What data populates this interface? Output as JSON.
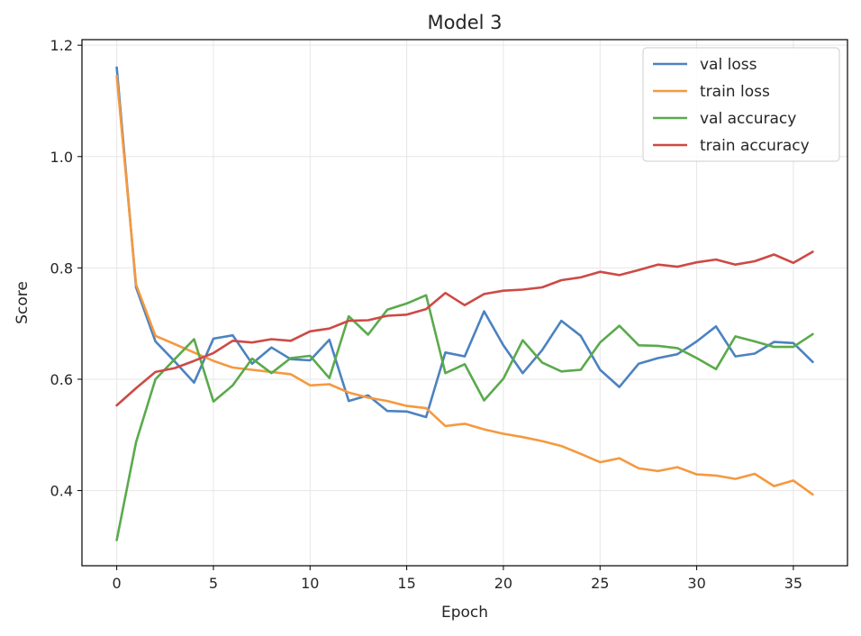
{
  "chart_data": {
    "type": "line",
    "title": "Model 3",
    "xlabel": "Epoch",
    "ylabel": "Score",
    "xlim": [
      -1.8,
      37.8
    ],
    "ylim": [
      0.265,
      1.21
    ],
    "xticks": [
      0,
      5,
      10,
      15,
      20,
      25,
      30,
      35
    ],
    "yticks": [
      0.4,
      0.6,
      0.8,
      1.0,
      1.2
    ],
    "ytick_labels": [
      "0.4",
      "0.6",
      "0.8",
      "1.0",
      "1.2"
    ],
    "grid": true,
    "legend_position": "top-right",
    "x": [
      0,
      1,
      2,
      3,
      4,
      5,
      6,
      7,
      8,
      9,
      10,
      11,
      12,
      13,
      14,
      15,
      16,
      17,
      18,
      19,
      20,
      21,
      22,
      23,
      24,
      25,
      26,
      27,
      28,
      29,
      30,
      31,
      32,
      33,
      34,
      35,
      36
    ],
    "series": [
      {
        "name": "val loss",
        "color": "#4c82c0",
        "values": [
          1.16,
          0.765,
          0.668,
          0.632,
          0.594,
          0.673,
          0.679,
          0.628,
          0.657,
          0.636,
          0.634,
          0.671,
          0.561,
          0.571,
          0.543,
          0.542,
          0.532,
          0.648,
          0.641,
          0.722,
          0.661,
          0.611,
          0.652,
          0.705,
          0.678,
          0.617,
          0.586,
          0.628,
          0.638,
          0.645,
          0.668,
          0.695,
          0.641,
          0.646,
          0.667,
          0.665,
          0.631
        ]
      },
      {
        "name": "train loss",
        "color": "#f5993f",
        "values": [
          1.145,
          0.77,
          0.678,
          0.663,
          0.648,
          0.633,
          0.621,
          0.617,
          0.613,
          0.609,
          0.589,
          0.591,
          0.576,
          0.567,
          0.561,
          0.552,
          0.548,
          0.516,
          0.52,
          0.51,
          0.502,
          0.496,
          0.489,
          0.48,
          0.466,
          0.451,
          0.458,
          0.44,
          0.435,
          0.442,
          0.429,
          0.427,
          0.421,
          0.43,
          0.408,
          0.418,
          0.393
        ]
      },
      {
        "name": "val accuracy",
        "color": "#5aaa4c",
        "values": [
          0.311,
          0.487,
          0.6,
          0.636,
          0.672,
          0.56,
          0.589,
          0.637,
          0.611,
          0.638,
          0.642,
          0.602,
          0.713,
          0.68,
          0.725,
          0.736,
          0.751,
          0.611,
          0.627,
          0.562,
          0.601,
          0.67,
          0.63,
          0.614,
          0.617,
          0.666,
          0.696,
          0.661,
          0.66,
          0.656,
          0.638,
          0.618,
          0.677,
          0.668,
          0.658,
          0.658,
          0.681
        ]
      },
      {
        "name": "train accuracy",
        "color": "#cd4a45",
        "values": [
          0.553,
          0.584,
          0.613,
          0.62,
          0.633,
          0.647,
          0.669,
          0.666,
          0.672,
          0.669,
          0.686,
          0.691,
          0.705,
          0.706,
          0.714,
          0.716,
          0.726,
          0.755,
          0.733,
          0.753,
          0.759,
          0.761,
          0.765,
          0.778,
          0.783,
          0.793,
          0.787,
          0.796,
          0.806,
          0.802,
          0.81,
          0.815,
          0.806,
          0.812,
          0.824,
          0.809,
          0.829
        ]
      }
    ]
  }
}
